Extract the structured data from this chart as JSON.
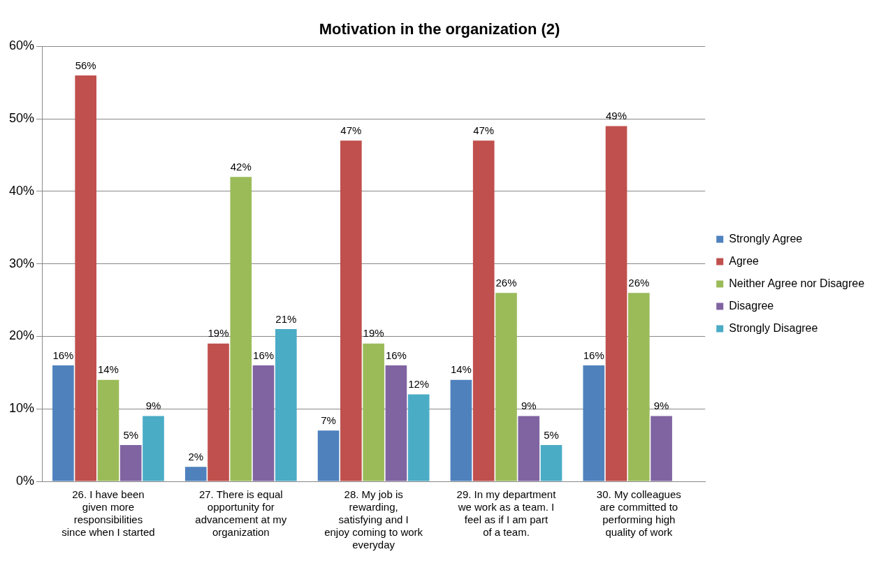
{
  "chart_data": {
    "type": "bar",
    "title": "Motivation in the organization (2)",
    "categories": [
      "26. I have been given more responsibilities since when I started",
      "27. There is equal opportunity for advancement at my organization",
      "28. My job is rewarding, satisfying and I enjoy coming to work everyday",
      "29. In my department we work as a team. I feel as if I am part of a team.",
      "30. My colleagues are committed to performing high quality of work"
    ],
    "series": [
      {
        "name": "Strongly Agree",
        "color": "#4f81bd",
        "values": [
          16,
          2,
          7,
          14,
          16
        ],
        "value_labels": [
          "16%",
          "2%",
          "7%",
          "14%",
          "16%"
        ]
      },
      {
        "name": "Agree",
        "color": "#c0504d",
        "values": [
          56,
          19,
          47,
          47,
          49
        ],
        "value_labels": [
          "56%",
          "19%",
          "47%",
          "47%",
          "49%"
        ]
      },
      {
        "name": "Neither Agree nor Disagree",
        "color": "#9bbb59",
        "values": [
          14,
          42,
          19,
          26,
          26
        ],
        "value_labels": [
          "14%",
          "42%",
          "19%",
          "26%",
          "26%"
        ]
      },
      {
        "name": "Disagree",
        "color": "#8064a2",
        "values": [
          5,
          16,
          16,
          9,
          9
        ],
        "value_labels": [
          "5%",
          "16%",
          "16%",
          "9%",
          "9%"
        ]
      },
      {
        "name": "Strongly Disagree",
        "color": "#4bacc6",
        "values": [
          9,
          21,
          12,
          5,
          null
        ],
        "value_labels": [
          "9%",
          "21%",
          "12%",
          "5%",
          null
        ]
      }
    ],
    "ylim": [
      0,
      60
    ],
    "yticks": [
      {
        "value": 0,
        "label": "0%"
      },
      {
        "value": 10,
        "label": "10%"
      },
      {
        "value": 20,
        "label": "20%"
      },
      {
        "value": 30,
        "label": "30%"
      },
      {
        "value": 40,
        "label": "40%"
      },
      {
        "value": 50,
        "label": "50%"
      },
      {
        "value": 60,
        "label": "60%"
      }
    ],
    "grid": "y",
    "legend": "right"
  }
}
